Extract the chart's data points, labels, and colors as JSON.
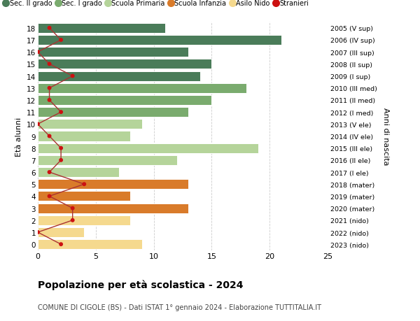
{
  "ages": [
    18,
    17,
    16,
    15,
    14,
    13,
    12,
    11,
    10,
    9,
    8,
    7,
    6,
    5,
    4,
    3,
    2,
    1,
    0
  ],
  "bar_values": [
    11,
    21,
    13,
    15,
    14,
    18,
    15,
    13,
    9,
    8,
    19,
    12,
    7,
    13,
    8,
    13,
    8,
    4,
    9
  ],
  "stranieri": [
    1,
    2,
    0,
    1,
    3,
    1,
    1,
    2,
    0,
    1,
    2,
    2,
    1,
    4,
    1,
    3,
    3,
    0,
    2
  ],
  "right_labels": [
    "2005 (V sup)",
    "2006 (IV sup)",
    "2007 (III sup)",
    "2008 (II sup)",
    "2009 (I sup)",
    "2010 (III med)",
    "2011 (II med)",
    "2012 (I med)",
    "2013 (V ele)",
    "2014 (IV ele)",
    "2015 (III ele)",
    "2016 (II ele)",
    "2017 (I ele)",
    "2018 (mater)",
    "2019 (mater)",
    "2020 (mater)",
    "2021 (nido)",
    "2022 (nido)",
    "2023 (nido)"
  ],
  "bar_colors": [
    "#4a7c59",
    "#4a7c59",
    "#4a7c59",
    "#4a7c59",
    "#4a7c59",
    "#7aab6e",
    "#7aab6e",
    "#7aab6e",
    "#b5d49a",
    "#b5d49a",
    "#b5d49a",
    "#b5d49a",
    "#b5d49a",
    "#d97b2a",
    "#d97b2a",
    "#d97b2a",
    "#f5d98e",
    "#f5d98e",
    "#f5d98e"
  ],
  "legend_labels": [
    "Sec. II grado",
    "Sec. I grado",
    "Scuola Primaria",
    "Scuola Infanzia",
    "Asilo Nido",
    "Stranieri"
  ],
  "legend_colors": [
    "#4a7c59",
    "#7aab6e",
    "#b5d49a",
    "#d97b2a",
    "#f5d98e",
    "#cc1111"
  ],
  "title": "Popolazione per età scolastica - 2024",
  "subtitle": "COMUNE DI CIGOLE (BS) - Dati ISTAT 1° gennaio 2024 - Elaborazione TUTTITALIA.IT",
  "ylabel": "Età alunni",
  "right_ylabel": "Anni di nascita",
  "xlim": [
    0,
    25
  ],
  "xticks": [
    0,
    5,
    10,
    15,
    20,
    25
  ],
  "bar_height": 0.82,
  "stranieri_color": "#cc1111",
  "line_color": "#aa3333",
  "bg_color": "#ffffff",
  "grid_color": "#cccccc"
}
